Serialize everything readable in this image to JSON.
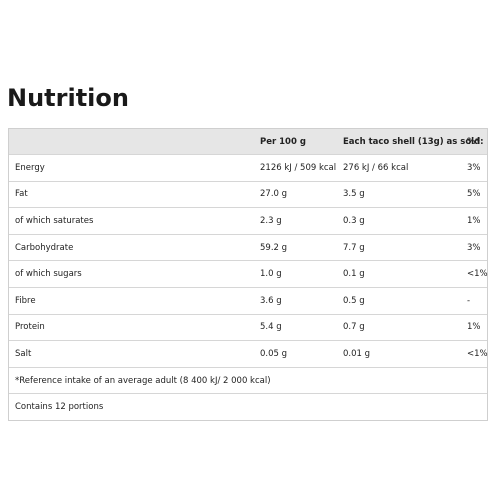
{
  "header": {
    "title": "Nutrition"
  },
  "table": {
    "headers": [
      "",
      "Per 100 g",
      "Each taco shell (13g) as sold:",
      "%*"
    ],
    "rows": [
      [
        "Energy",
        "2126 kJ / 509 kcal",
        "276 kJ / 66 kcal",
        "3%"
      ],
      [
        "Fat",
        "27.0 g",
        "3.5 g",
        "5%"
      ],
      [
        "of which saturates",
        "2.3 g",
        "0.3 g",
        "1%"
      ],
      [
        "Carbohydrate",
        "59.2 g",
        "7.7 g",
        "3%"
      ],
      [
        "of which sugars",
        "1.0 g",
        "0.1 g",
        "<1%"
      ],
      [
        "Fibre",
        "3.6 g",
        "0.5 g",
        "-"
      ],
      [
        "Protein",
        "5.4 g",
        "0.7 g",
        "1%"
      ],
      [
        "Salt",
        "0.05 g",
        "0.01 g",
        "<1%"
      ]
    ],
    "footnote": "*Reference intake of an average adult (8 400 kJ/ 2 000 kcal)",
    "note": "Contains 12 portions"
  }
}
